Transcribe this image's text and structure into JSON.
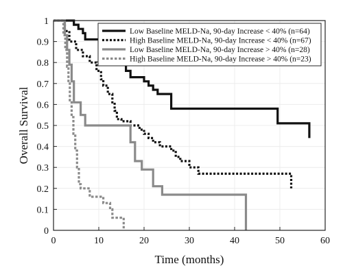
{
  "chart_data": {
    "type": "line",
    "title": "",
    "xlabel": "Time (months)",
    "ylabel": "Overall Survival",
    "xlim": [
      0,
      60
    ],
    "ylim": [
      0,
      1
    ],
    "xticks": [
      0,
      10,
      20,
      30,
      40,
      50,
      60
    ],
    "yticks": [
      0,
      0.1,
      0.2,
      0.3,
      0.4,
      0.5,
      0.6,
      0.7,
      0.8,
      0.9,
      1
    ],
    "grid": true,
    "legend_position": "top-right",
    "series": [
      {
        "name": "Low Baseline MELD-Na, 90-day Increase < 40% (n=64)",
        "color": "#111111",
        "dash": "solid",
        "points": [
          [
            0,
            1
          ],
          [
            4.5,
            1
          ],
          [
            4.5,
            0.98
          ],
          [
            5.5,
            0.98
          ],
          [
            5.5,
            0.96
          ],
          [
            6.5,
            0.96
          ],
          [
            6.5,
            0.94
          ],
          [
            7,
            0.94
          ],
          [
            7,
            0.91
          ],
          [
            10.5,
            0.91
          ],
          [
            10.5,
            0.87
          ],
          [
            12,
            0.87
          ],
          [
            12,
            0.85
          ],
          [
            13,
            0.85
          ],
          [
            13,
            0.83
          ],
          [
            14,
            0.83
          ],
          [
            14,
            0.81
          ],
          [
            15,
            0.81
          ],
          [
            15,
            0.79
          ],
          [
            16,
            0.79
          ],
          [
            16,
            0.76
          ],
          [
            17,
            0.76
          ],
          [
            17,
            0.73
          ],
          [
            20,
            0.73
          ],
          [
            20,
            0.71
          ],
          [
            21,
            0.71
          ],
          [
            21,
            0.69
          ],
          [
            22,
            0.69
          ],
          [
            22,
            0.67
          ],
          [
            23,
            0.67
          ],
          [
            23,
            0.65
          ],
          [
            26,
            0.65
          ],
          [
            26,
            0.58
          ],
          [
            49.5,
            0.58
          ],
          [
            49.5,
            0.51
          ],
          [
            52,
            0.51
          ],
          [
            52,
            0.51
          ],
          [
            56.5,
            0.51
          ],
          [
            56.5,
            0.44
          ]
        ]
      },
      {
        "name": "High Baseline MELD-Na, 90-day Increase < 40% (n=67)",
        "color": "#111111",
        "dash": "dotted",
        "points": [
          [
            0,
            1
          ],
          [
            2.5,
            1
          ],
          [
            2.5,
            0.95
          ],
          [
            3.5,
            0.95
          ],
          [
            3.5,
            0.9
          ],
          [
            5,
            0.9
          ],
          [
            5,
            0.86
          ],
          [
            6.5,
            0.86
          ],
          [
            6.5,
            0.83
          ],
          [
            8,
            0.83
          ],
          [
            8,
            0.8
          ],
          [
            9.5,
            0.8
          ],
          [
            9.5,
            0.76
          ],
          [
            10.5,
            0.76
          ],
          [
            10.5,
            0.72
          ],
          [
            11,
            0.72
          ],
          [
            11,
            0.69
          ],
          [
            12,
            0.69
          ],
          [
            12,
            0.65
          ],
          [
            13,
            0.65
          ],
          [
            13,
            0.61
          ],
          [
            13.5,
            0.61
          ],
          [
            13.5,
            0.57
          ],
          [
            14,
            0.57
          ],
          [
            14,
            0.53
          ],
          [
            15,
            0.53
          ],
          [
            15,
            0.52
          ],
          [
            17,
            0.52
          ],
          [
            17,
            0.5
          ],
          [
            19,
            0.5
          ],
          [
            19,
            0.48
          ],
          [
            20,
            0.48
          ],
          [
            20,
            0.46
          ],
          [
            21,
            0.46
          ],
          [
            21,
            0.44
          ],
          [
            22,
            0.44
          ],
          [
            22,
            0.42
          ],
          [
            23.5,
            0.42
          ],
          [
            23.5,
            0.4
          ],
          [
            26,
            0.4
          ],
          [
            26,
            0.38
          ],
          [
            27,
            0.38
          ],
          [
            27,
            0.35
          ],
          [
            28,
            0.35
          ],
          [
            28,
            0.33
          ],
          [
            30,
            0.33
          ],
          [
            30,
            0.3
          ],
          [
            32,
            0.3
          ],
          [
            32,
            0.27
          ],
          [
            52.5,
            0.27
          ],
          [
            52.5,
            0.2
          ]
        ]
      },
      {
        "name": "Low Baseline MELD-Na, 90-day Increase > 40% (n=28)",
        "color": "#8a8a8a",
        "dash": "solid",
        "points": [
          [
            0,
            1
          ],
          [
            2.5,
            1
          ],
          [
            2.5,
            0.93
          ],
          [
            3,
            0.93
          ],
          [
            3,
            0.86
          ],
          [
            3.5,
            0.86
          ],
          [
            3.5,
            0.79
          ],
          [
            4,
            0.79
          ],
          [
            4,
            0.71
          ],
          [
            4.5,
            0.71
          ],
          [
            4.5,
            0.61
          ],
          [
            6,
            0.61
          ],
          [
            6,
            0.55
          ],
          [
            7,
            0.55
          ],
          [
            7,
            0.5
          ],
          [
            17,
            0.5
          ],
          [
            17,
            0.42
          ],
          [
            18,
            0.42
          ],
          [
            18,
            0.33
          ],
          [
            19.5,
            0.33
          ],
          [
            19.5,
            0.29
          ],
          [
            22,
            0.29
          ],
          [
            22,
            0.21
          ],
          [
            24,
            0.21
          ],
          [
            24,
            0.17
          ],
          [
            42.5,
            0.17
          ],
          [
            42.5,
            0
          ]
        ]
      },
      {
        "name": "High Baseline MELD-Na, 90-day Increase > 40% (n=23)",
        "color": "#8a8a8a",
        "dash": "dotted",
        "points": [
          [
            0,
            1
          ],
          [
            2.2,
            1
          ],
          [
            2.2,
            0.93
          ],
          [
            2.6,
            0.93
          ],
          [
            2.6,
            0.86
          ],
          [
            3,
            0.86
          ],
          [
            3,
            0.78
          ],
          [
            3.3,
            0.78
          ],
          [
            3.3,
            0.7
          ],
          [
            3.6,
            0.7
          ],
          [
            3.6,
            0.62
          ],
          [
            4,
            0.62
          ],
          [
            4,
            0.54
          ],
          [
            4.4,
            0.54
          ],
          [
            4.4,
            0.46
          ],
          [
            4.8,
            0.46
          ],
          [
            4.8,
            0.38
          ],
          [
            5.2,
            0.38
          ],
          [
            5.2,
            0.3
          ],
          [
            5.6,
            0.3
          ],
          [
            5.6,
            0.22
          ],
          [
            6,
            0.22
          ],
          [
            6,
            0.2
          ],
          [
            8,
            0.2
          ],
          [
            8,
            0.16
          ],
          [
            11,
            0.16
          ],
          [
            11,
            0.13
          ],
          [
            12.5,
            0.13
          ],
          [
            12.5,
            0.1
          ],
          [
            13,
            0.1
          ],
          [
            13,
            0.06
          ],
          [
            15.5,
            0.06
          ],
          [
            15.5,
            0
          ]
        ]
      }
    ]
  }
}
